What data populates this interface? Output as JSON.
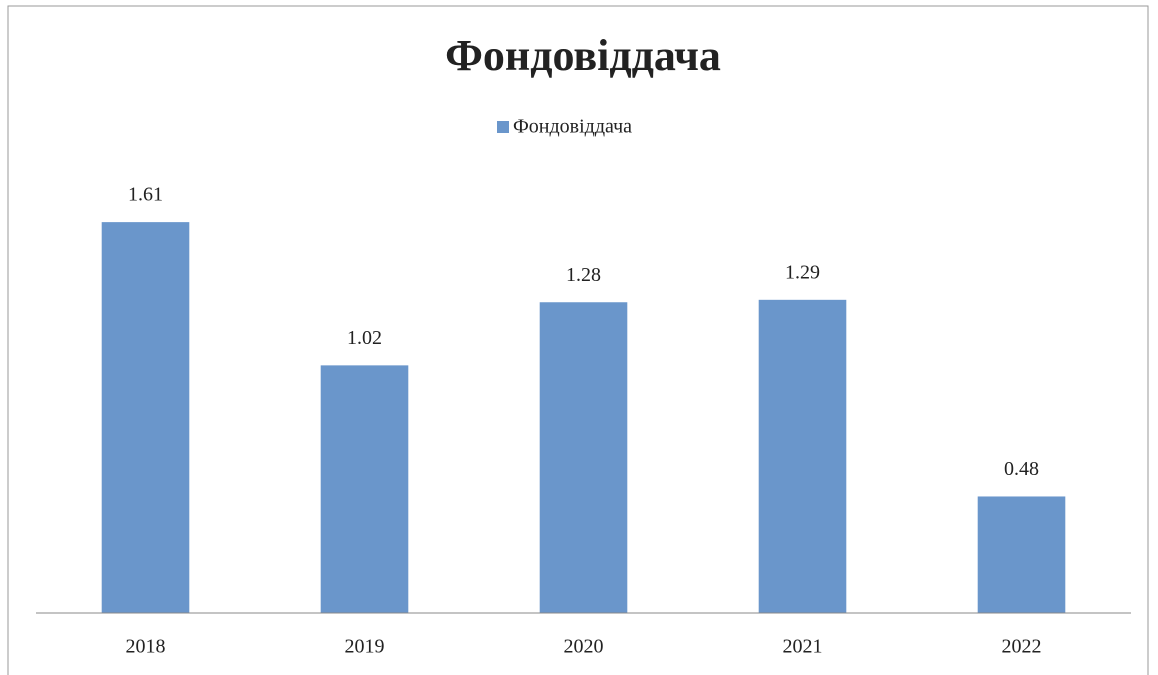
{
  "chart_data": {
    "type": "bar",
    "title": "Фондовіддача",
    "categories": [
      "2018",
      "2019",
      "2020",
      "2021",
      "2022"
    ],
    "series": [
      {
        "name": "Фондовіддача",
        "color": "#6a96cb",
        "values": [
          1.61,
          1.02,
          1.28,
          1.29,
          0.48
        ]
      }
    ],
    "ylim": [
      0,
      1.8
    ],
    "legend": "top"
  }
}
